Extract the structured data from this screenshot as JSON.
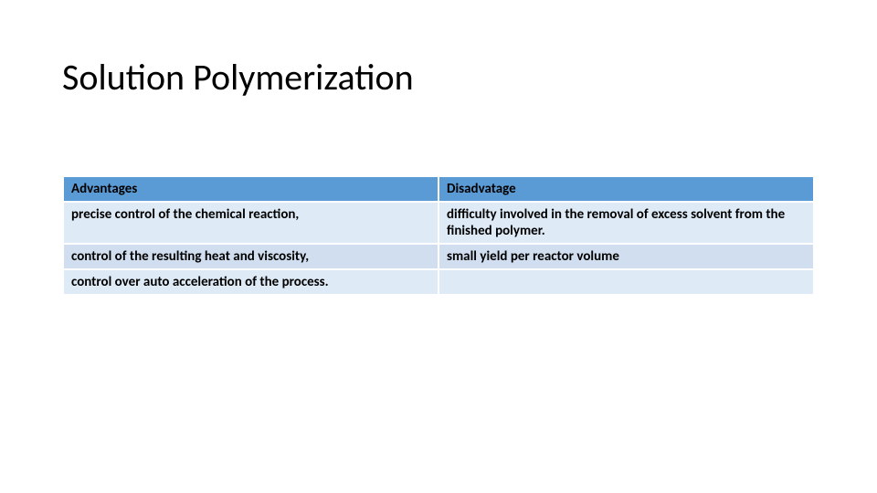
{
  "title": "Solution Polymerization",
  "table": {
    "header_bg": "#5b9bd5",
    "row_light_bg": "#deeaf6",
    "row_medium_bg": "#d0deef",
    "border_color": "#ffffff",
    "text_color": "#000000",
    "font_size_pt": 15,
    "font_weight": "bold",
    "columns": [
      {
        "label": "Advantages",
        "width": "50%"
      },
      {
        "label": "Disadvatage",
        "width": "50%"
      }
    ],
    "rows": [
      {
        "style": "light",
        "cells": [
          "precise control of the chemical reaction,",
          "difficulty involved in the removal of excess solvent from the finished polymer."
        ]
      },
      {
        "style": "medium",
        "cells": [
          "control of the resulting heat and viscosity,",
          "small yield per reactor volume"
        ]
      },
      {
        "style": "light",
        "cells": [
          "control over auto acceleration of the process.",
          ""
        ]
      }
    ]
  }
}
